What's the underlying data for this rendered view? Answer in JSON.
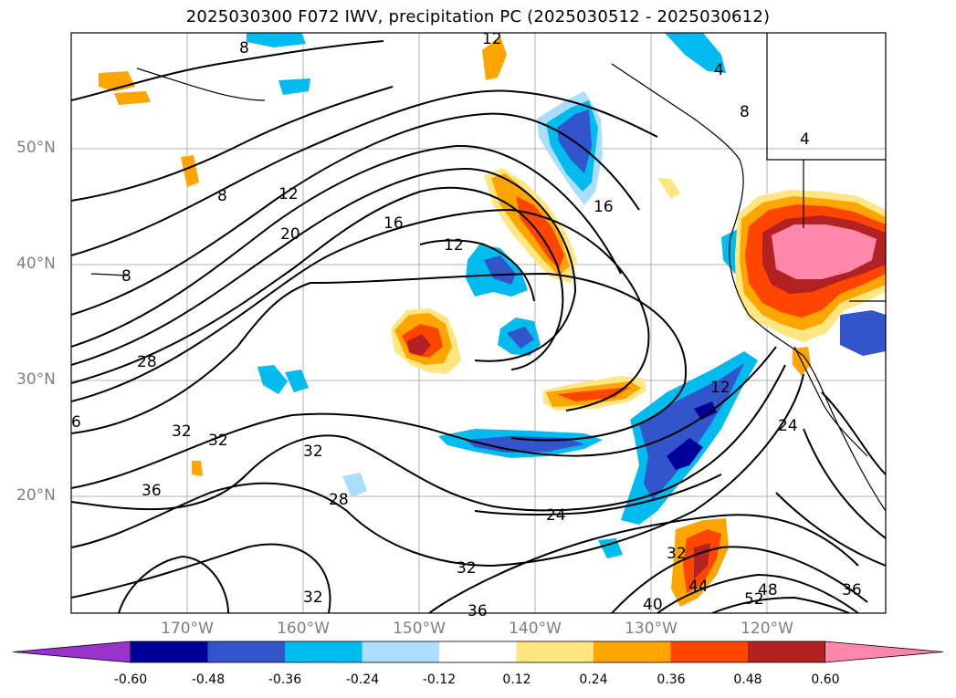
{
  "title": "2025030300 F072 IWV, precipitation PC (2025030512 - 2025030612)",
  "lat_labels": [
    "50°N",
    "40°N",
    "30°N",
    "20°N"
  ],
  "lon_labels": [
    "170°W",
    "160°W",
    "150°W",
    "140°W",
    "130°W",
    "120°W"
  ],
  "contour_labels": [
    "8",
    "8",
    "8",
    "12",
    "20",
    "16",
    "12",
    "16",
    "28",
    "32",
    "32",
    "32",
    "36",
    "28",
    "24",
    "32",
    "32",
    "36",
    "40",
    "32",
    "44",
    "48",
    "52",
    "36",
    "24",
    "12",
    "6",
    "12",
    "4",
    "8",
    "4"
  ],
  "colorbar": {
    "ticks": [
      "-0.60",
      "-0.48",
      "-0.36",
      "-0.24",
      "-0.12",
      "0.12",
      "0.24",
      "0.36",
      "0.48",
      "0.60"
    ],
    "colors": [
      "#9933cc",
      "#000099",
      "#3355cc",
      "#00bbee",
      "#aaddff",
      "#ffffff",
      "#ffe680",
      "#ffa500",
      "#ff4500",
      "#b22222",
      "#ff88aa"
    ]
  },
  "colors": {
    "grid": "#b0b0b0",
    "label_gray": "#7f7f7f",
    "contour": "#000000"
  }
}
